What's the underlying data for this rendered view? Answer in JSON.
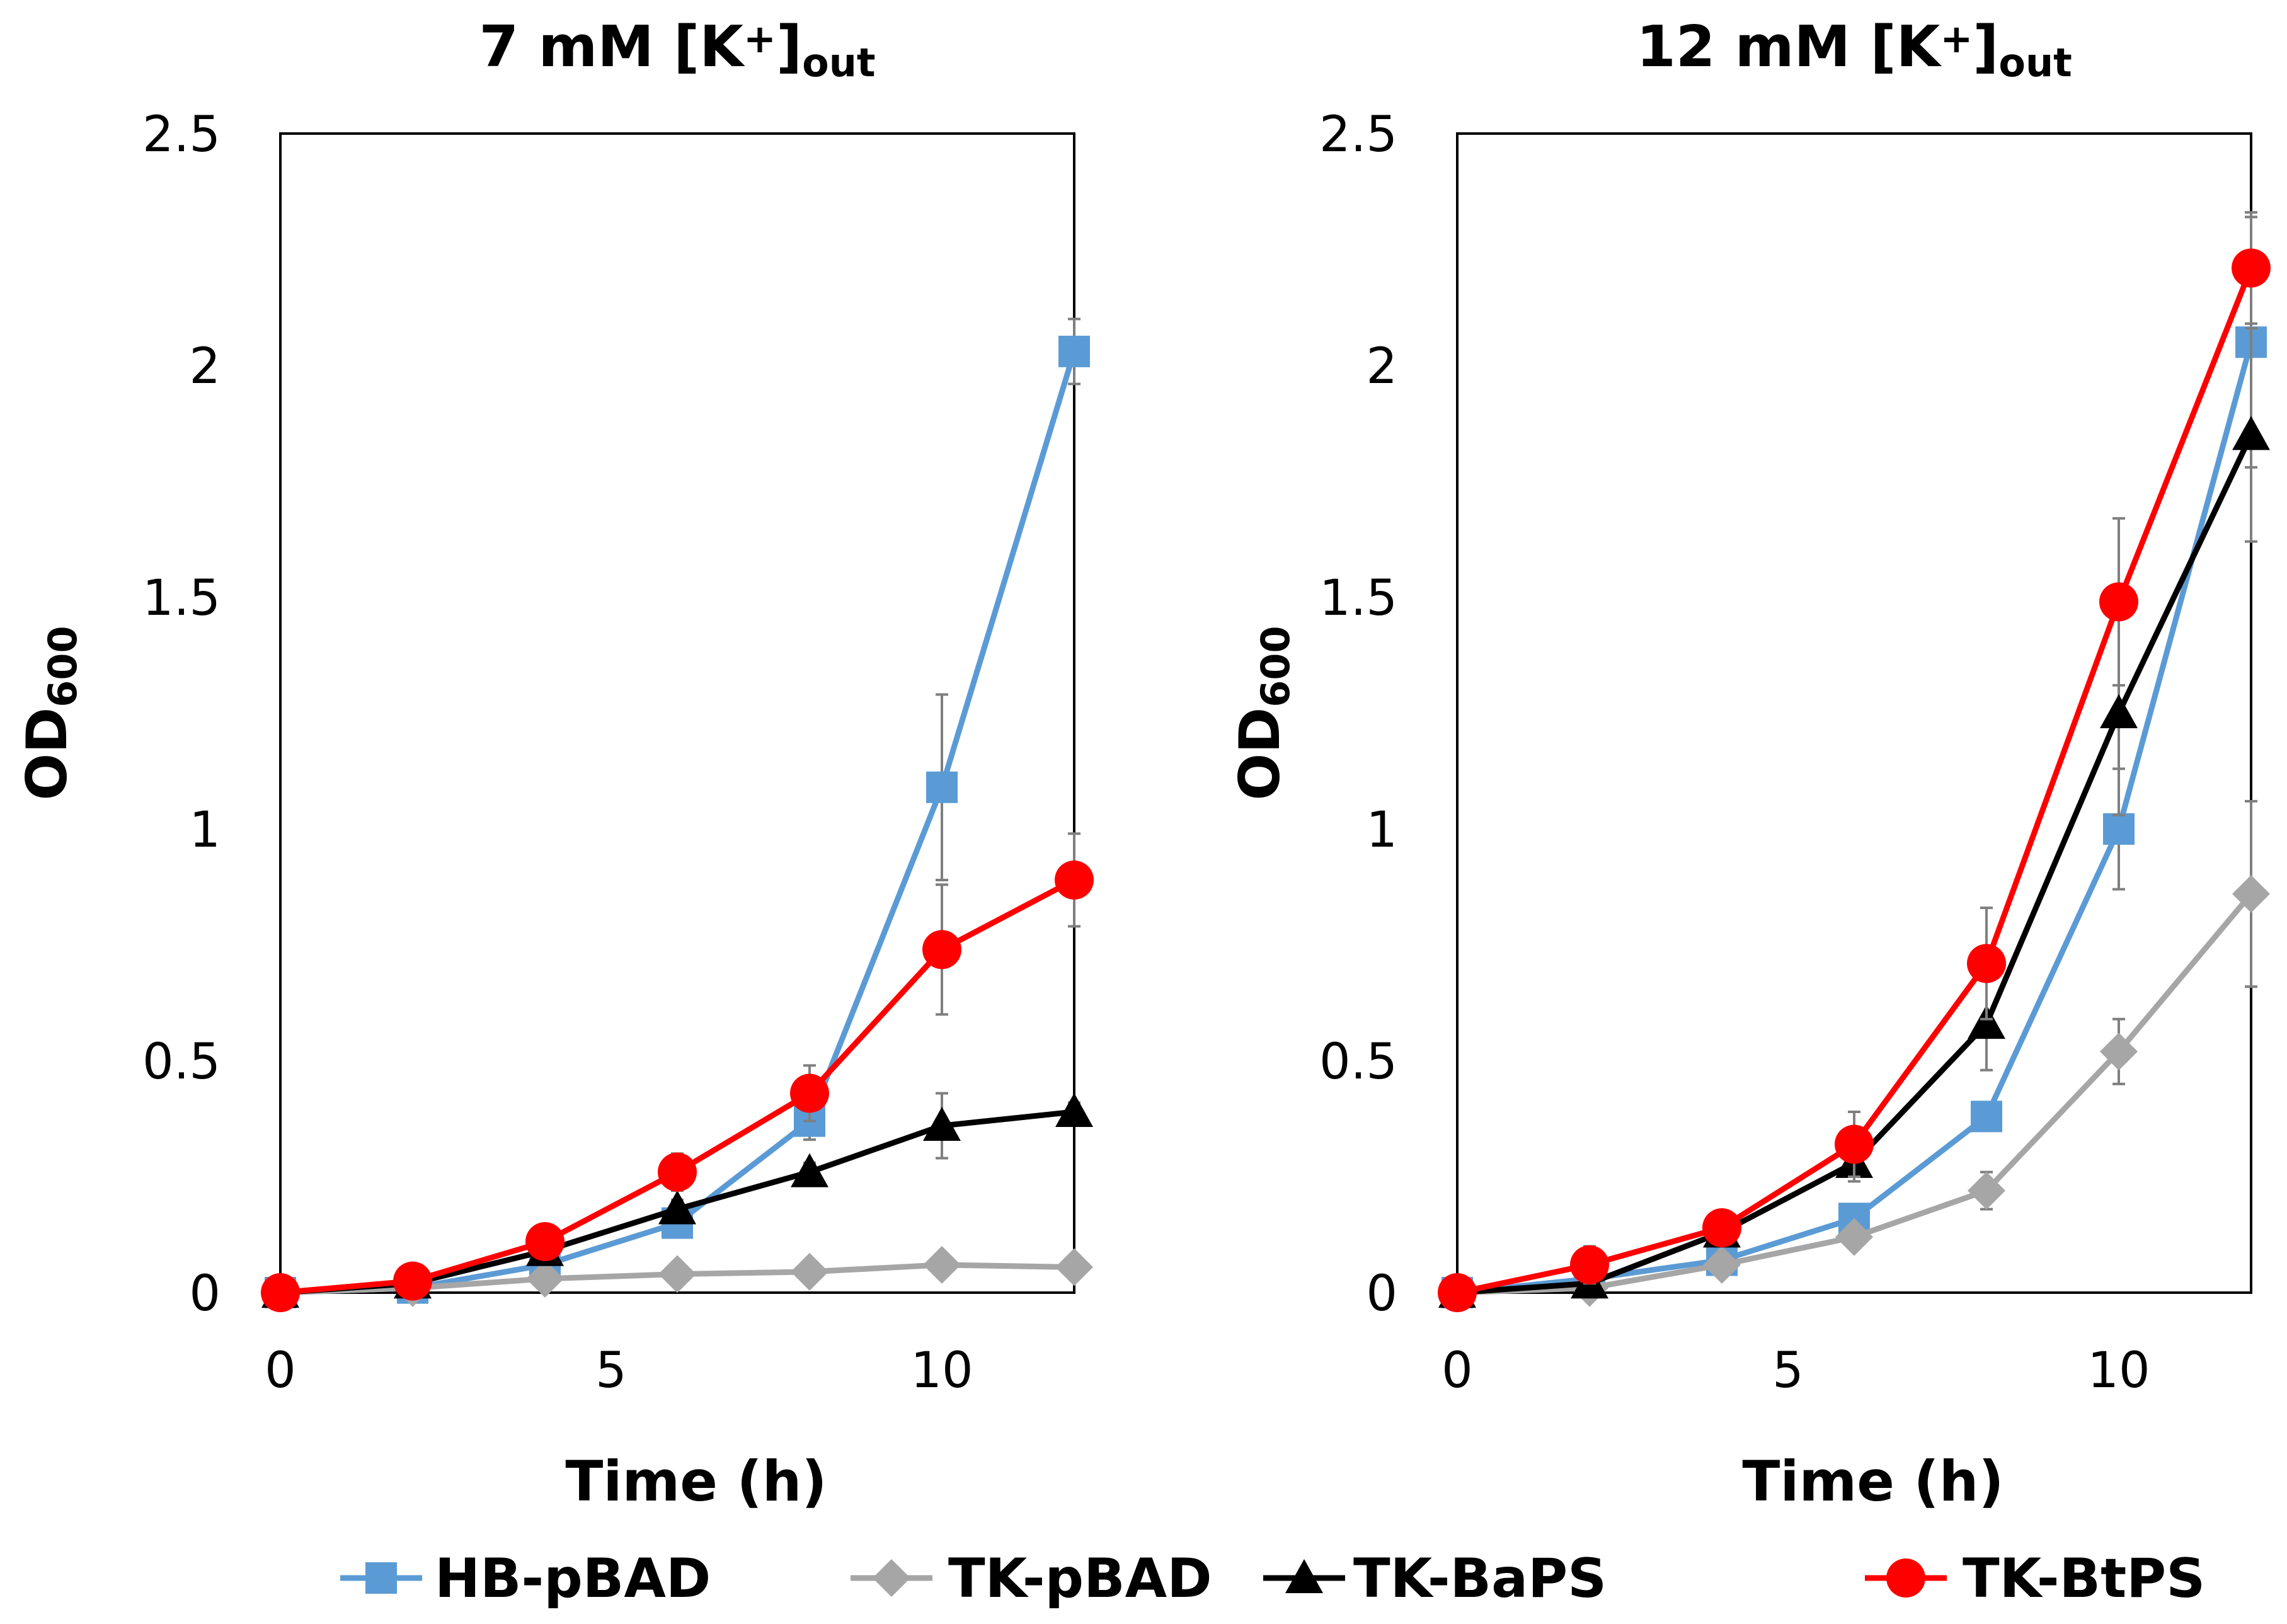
{
  "chart_data": [
    {
      "type": "line",
      "title": "7 mM [K+]out",
      "title_parts": {
        "main": "7 mM [K",
        "sup": "+",
        "close": "]",
        "sub": "out"
      },
      "xlabel": "Time (h)",
      "ylabel_parts": {
        "main": "OD",
        "sub": "600"
      },
      "xlim": [
        0,
        12
      ],
      "ylim": [
        0,
        2.5
      ],
      "xticks": [
        "0",
        "5",
        "10"
      ],
      "yticks": [
        "0",
        "0.5",
        "1",
        "1.5",
        "2",
        "2.5"
      ],
      "x": [
        0,
        2,
        4,
        6,
        8,
        10,
        12
      ],
      "series": [
        {
          "name": "HB-pBAD",
          "color": "#5b9bd5",
          "marker": "square",
          "values": [
            0.0,
            0.01,
            0.06,
            0.15,
            0.37,
            1.09,
            2.03
          ],
          "error": [
            0,
            0,
            0,
            0.02,
            0.04,
            0.2,
            0.07
          ]
        },
        {
          "name": "TK-pBAD",
          "color": "#a6a6a6",
          "marker": "diamond",
          "values": [
            0.0,
            0.01,
            0.03,
            0.04,
            0.045,
            0.06,
            0.055
          ],
          "error": [
            0,
            0,
            0,
            0,
            0,
            0,
            0
          ]
        },
        {
          "name": "TK-BaPS",
          "color": "#000000",
          "marker": "triangle",
          "values": [
            0.0,
            0.02,
            0.09,
            0.18,
            0.26,
            0.36,
            0.39
          ],
          "error": [
            0,
            0,
            0,
            0.02,
            0.02,
            0.07,
            0.02
          ]
        },
        {
          "name": "TK-BtPS",
          "color": "#ff0000",
          "marker": "circle",
          "values": [
            0.0,
            0.025,
            0.11,
            0.26,
            0.43,
            0.74,
            0.89
          ],
          "error": [
            0,
            0,
            0.02,
            0.04,
            0.06,
            0.14,
            0.1
          ]
        }
      ]
    },
    {
      "type": "line",
      "title": "12 mM [K+]out",
      "title_parts": {
        "main": "12 mM [K",
        "sup": "+",
        "close": "]",
        "sub": "out"
      },
      "xlabel": "Time (h)",
      "ylabel_parts": {
        "main": "OD",
        "sub": "600"
      },
      "xlim": [
        0,
        12
      ],
      "ylim": [
        0,
        2.5
      ],
      "xticks": [
        "0",
        "5",
        "10"
      ],
      "yticks": [
        "0",
        "0.5",
        "1",
        "1.5",
        "2",
        "2.5"
      ],
      "x": [
        0,
        2,
        4,
        6,
        8,
        10,
        12
      ],
      "series": [
        {
          "name": "HB-pBAD",
          "color": "#5b9bd5",
          "marker": "square",
          "values": [
            0.0,
            0.03,
            0.07,
            0.16,
            0.38,
            1.0,
            2.05
          ],
          "error": [
            0,
            0,
            0.01,
            0.02,
            0.03,
            0.13,
            0.27
          ]
        },
        {
          "name": "TK-pBAD",
          "color": "#a6a6a6",
          "marker": "diamond",
          "values": [
            0.0,
            0.01,
            0.06,
            0.12,
            0.22,
            0.52,
            0.86
          ],
          "error": [
            0,
            0,
            0.01,
            0.02,
            0.04,
            0.07,
            0.2
          ]
        },
        {
          "name": "TK-BaPS",
          "color": "#000000",
          "marker": "triangle",
          "values": [
            0.0,
            0.02,
            0.13,
            0.28,
            0.58,
            1.25,
            1.85
          ],
          "error": [
            0,
            0,
            0.02,
            0.04,
            0.1,
            0.22,
            0.23
          ]
        },
        {
          "name": "TK-BtPS",
          "color": "#ff0000",
          "marker": "circle",
          "values": [
            0.0,
            0.06,
            0.14,
            0.32,
            0.71,
            1.49,
            2.21
          ],
          "error": [
            0,
            0.04,
            0.03,
            0.07,
            0.12,
            0.18,
            0.12
          ]
        }
      ]
    }
  ],
  "legend": {
    "placement": "bottom",
    "items": [
      {
        "name": "HB-pBAD",
        "color": "#5b9bd5",
        "marker": "square"
      },
      {
        "name": "TK-pBAD",
        "color": "#a6a6a6",
        "marker": "diamond"
      },
      {
        "name": "TK-BaPS",
        "color": "#000000",
        "marker": "triangle"
      },
      {
        "name": "TK-BtPS",
        "color": "#ff0000",
        "marker": "circle"
      }
    ]
  }
}
